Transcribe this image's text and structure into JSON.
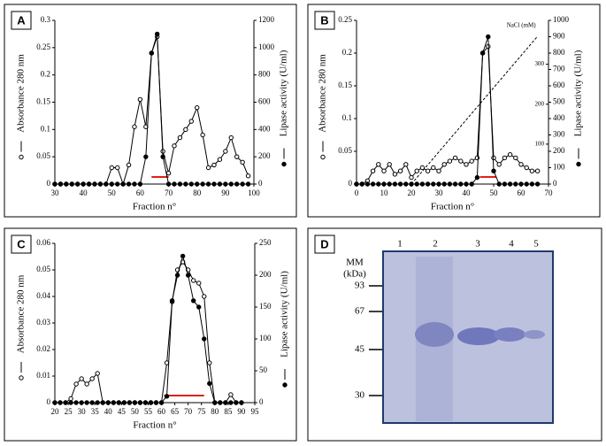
{
  "chart_data": [
    {
      "type": "line",
      "label": "A",
      "xlabel": "Fraction n°",
      "x": [
        30,
        32,
        34,
        36,
        38,
        40,
        42,
        44,
        46,
        48,
        50,
        52,
        54,
        56,
        58,
        60,
        62,
        64,
        66,
        68,
        70,
        72,
        74,
        76,
        78,
        80,
        82,
        84,
        86,
        88,
        90,
        92,
        94,
        96,
        98
      ],
      "series": [
        {
          "name": "Absorbance 280 nm",
          "color": "#000000",
          "marker": "open",
          "values": [
            0,
            0,
            0,
            0,
            0,
            0,
            0,
            0,
            0,
            0,
            0.03,
            0.03,
            0,
            0.035,
            0.105,
            0.155,
            0.105,
            0.24,
            0.27,
            0.06,
            0.02,
            0.07,
            0.085,
            0.1,
            0.115,
            0.14,
            0.09,
            0.03,
            0.035,
            0.045,
            0.06,
            0.085,
            0.05,
            0.04,
            0.015
          ]
        },
        {
          "name": "Lipase activity (U/ml)",
          "color": "#000000",
          "marker": "filled",
          "axis": "y2",
          "values": [
            0,
            0,
            0,
            0,
            0,
            0,
            0,
            0,
            0,
            0,
            0,
            0,
            0,
            0,
            0,
            0,
            200,
            960,
            1100,
            200,
            0,
            0,
            0,
            0,
            0,
            0,
            0,
            0,
            0,
            0,
            0,
            0,
            0,
            0,
            0
          ]
        }
      ],
      "highlight": [
        64,
        70
      ],
      "xlim": [
        30,
        100
      ],
      "xticks": [
        30,
        40,
        50,
        60,
        70,
        80,
        90,
        100
      ],
      "ylim": [
        0,
        0.3
      ],
      "yticks": [
        0,
        0.05,
        0.1,
        0.15,
        0.2,
        0.25,
        0.3
      ],
      "y2lim": [
        0,
        1200
      ],
      "y2ticks": [
        0,
        200,
        400,
        600,
        800,
        1000,
        1200
      ]
    },
    {
      "type": "line",
      "label": "B",
      "xlabel": "Fraction n°",
      "x": [
        0,
        2,
        4,
        6,
        8,
        10,
        12,
        14,
        16,
        18,
        20,
        22,
        24,
        26,
        28,
        30,
        32,
        34,
        36,
        38,
        40,
        42,
        44,
        46,
        48,
        50,
        52,
        54,
        56,
        58,
        60,
        62,
        64,
        66
      ],
      "series": [
        {
          "name": "Absorbance 280 nm",
          "color": "#000000",
          "marker": "open",
          "values": [
            0,
            0,
            0.005,
            0.02,
            0.03,
            0.02,
            0.03,
            0.015,
            0.02,
            0.03,
            0.01,
            0.02,
            0.025,
            0.02,
            0.025,
            0.02,
            0.03,
            0.035,
            0.04,
            0.035,
            0.03,
            0.035,
            0.04,
            0.2,
            0.21,
            0.04,
            0.03,
            0.04,
            0.045,
            0.04,
            0.03,
            0.025,
            0.02,
            0.02
          ]
        },
        {
          "name": "Lipase activity (U/ml)",
          "color": "#000000",
          "marker": "filled",
          "axis": "y2",
          "values": [
            0,
            0,
            0,
            0,
            0,
            0,
            0,
            0,
            0,
            0,
            0,
            0,
            0,
            0,
            0,
            0,
            0,
            0,
            0,
            0,
            0,
            0,
            40,
            800,
            900,
            80,
            0,
            0,
            0,
            0,
            0,
            0,
            0,
            0
          ]
        },
        {
          "name": "NaCl (mM)",
          "color": "#000000",
          "marker": "none",
          "axis": "y3",
          "dashed": true,
          "x": [
            20,
            66
          ],
          "values": [
            0,
            370
          ]
        }
      ],
      "highlight": [
        45,
        51
      ],
      "xlim": [
        0,
        70
      ],
      "xticks": [
        0,
        10,
        20,
        30,
        40,
        50,
        60,
        70
      ],
      "ylim": [
        0,
        0.25
      ],
      "yticks": [
        0,
        0.05,
        0.1,
        0.15,
        0.2,
        0.25
      ],
      "y2lim": [
        0,
        1000
      ],
      "y2ticks": [
        0,
        100,
        200,
        300,
        400,
        500,
        600,
        700,
        800,
        900,
        1000
      ],
      "y3lim": [
        0,
        410
      ],
      "y3ticks": [
        100,
        200,
        300
      ]
    },
    {
      "type": "line",
      "label": "C",
      "xlabel": "Fraction n°",
      "x": [
        20,
        22,
        24,
        26,
        28,
        30,
        32,
        34,
        36,
        38,
        40,
        42,
        44,
        46,
        48,
        50,
        52,
        54,
        56,
        58,
        60,
        62,
        64,
        66,
        68,
        70,
        72,
        74,
        76,
        78,
        80,
        82,
        84,
        86,
        88,
        90
      ],
      "series": [
        {
          "name": "Absorbance 280 nm",
          "color": "#000000",
          "marker": "open",
          "values": [
            0,
            0,
            0,
            0.0015,
            0.007,
            0.009,
            0.007,
            0.009,
            0.011,
            0,
            0,
            0,
            0,
            0,
            0,
            0,
            0,
            0,
            0,
            0,
            0,
            0.015,
            0.038,
            0.05,
            0.053,
            0.05,
            0.046,
            0.045,
            0.04,
            0.015,
            0,
            0,
            0,
            0.003,
            0,
            0
          ]
        },
        {
          "name": "Lipase activity (U/ml)",
          "color": "#000000",
          "marker": "filled",
          "axis": "y2",
          "values": [
            0,
            0,
            0,
            0,
            0,
            0,
            0,
            0,
            0,
            0,
            0,
            0,
            0,
            0,
            0,
            0,
            0,
            0,
            0,
            0,
            0,
            10,
            160,
            200,
            230,
            200,
            160,
            150,
            100,
            30,
            0,
            0,
            0,
            0,
            0,
            0
          ]
        }
      ],
      "highlight": [
        61,
        76
      ],
      "xlim": [
        20,
        95
      ],
      "xticks": [
        20,
        25,
        30,
        35,
        40,
        45,
        50,
        55,
        60,
        65,
        70,
        75,
        80,
        85,
        90,
        95
      ],
      "ylim": [
        0,
        0.06
      ],
      "yticks": [
        0,
        0.01,
        0.02,
        0.03,
        0.04,
        0.05,
        0.06
      ],
      "y2lim": [
        0,
        250
      ],
      "y2ticks": [
        0,
        50,
        100,
        150,
        200,
        250
      ]
    }
  ],
  "gel": {
    "label": "D",
    "mm": "MM",
    "unit": "(kDa)",
    "lanes": [
      "1",
      "2",
      "3",
      "4",
      "5"
    ],
    "markers": [
      "93",
      "67",
      "45",
      "30"
    ]
  }
}
